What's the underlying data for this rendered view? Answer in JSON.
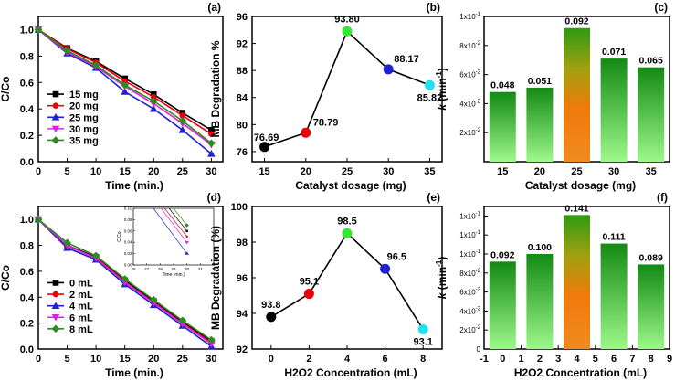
{
  "chart_data": [
    {
      "id": "a",
      "panel_label": "(a)",
      "type": "line",
      "xlabel": "Time (min.)",
      "ylabel": "C/Co",
      "xlim": [
        0,
        32
      ],
      "ylim": [
        0,
        1.1
      ],
      "x_ticks": [
        0,
        5,
        10,
        15,
        20,
        25,
        30
      ],
      "y_ticks": [
        "0.0",
        "0.2",
        "0.4",
        "0.6",
        "0.8",
        "1.0"
      ],
      "x": [
        0,
        5,
        10,
        15,
        20,
        25,
        30
      ],
      "legend_position": "bottom-left",
      "series": [
        {
          "name": "15 mg",
          "color": "#000000",
          "marker": "square",
          "values": [
            1.0,
            0.86,
            0.76,
            0.63,
            0.51,
            0.37,
            0.24
          ]
        },
        {
          "name": "20 mg",
          "color": "#e8000b",
          "marker": "circle",
          "values": [
            1.0,
            0.855,
            0.75,
            0.61,
            0.49,
            0.35,
            0.21
          ]
        },
        {
          "name": "25 mg",
          "color": "#1f1fd4",
          "marker": "triangle",
          "values": [
            1.0,
            0.82,
            0.71,
            0.53,
            0.4,
            0.24,
            0.06
          ]
        },
        {
          "name": "30 mg",
          "color": "#e020e0",
          "marker": "tri-down",
          "values": [
            1.0,
            0.83,
            0.72,
            0.57,
            0.44,
            0.29,
            0.13
          ]
        },
        {
          "name": "35 mg",
          "color": "#2e8b1f",
          "marker": "diamond",
          "values": [
            1.0,
            0.84,
            0.73,
            0.58,
            0.46,
            0.31,
            0.14
          ]
        }
      ]
    },
    {
      "id": "b",
      "panel_label": "(b)",
      "type": "line",
      "xlabel": "Catalyst dosage (mg)",
      "ylabel": "MB Degradation %",
      "xlim": [
        13.5,
        36.5
      ],
      "ylim": [
        74.5,
        96
      ],
      "x_ticks": [
        15,
        20,
        25,
        30,
        35
      ],
      "y_ticks": [
        76,
        80,
        84,
        88,
        92,
        96
      ],
      "x": [
        15,
        20,
        25,
        30,
        35
      ],
      "values": [
        76.69,
        78.79,
        93.8,
        88.17,
        85.82
      ],
      "labels": [
        "76.69",
        "78.79",
        "93.80",
        "88.17",
        "85.82"
      ],
      "point_colors": [
        "#000000",
        "#e8000b",
        "#33e833",
        "#1f1fd4",
        "#22e0ee"
      ]
    },
    {
      "id": "c",
      "panel_label": "(c)",
      "type": "bar",
      "xlabel": "Catalyst dosage (mg)",
      "ylabel_k": "k",
      "ylabel_rest": " (min",
      "ylabel_sup": "-1",
      "ylabel_end": ")",
      "categories": [
        "15",
        "20",
        "25",
        "30",
        "35"
      ],
      "values": [
        0.048,
        0.051,
        0.092,
        0.071,
        0.065
      ],
      "labels": [
        "0.048",
        "0.051",
        "0.092",
        "0.071",
        "0.065"
      ],
      "highlight_index": 2,
      "ylim": [
        0,
        0.1
      ],
      "y_ticks": [
        {
          "v": 0.02,
          "base": "2x10",
          "exp": "-2"
        },
        {
          "v": 0.04,
          "base": "4x10",
          "exp": "-2"
        },
        {
          "v": 0.06,
          "base": "6x10",
          "exp": "-2"
        },
        {
          "v": 0.08,
          "base": "8x10",
          "exp": "-2"
        },
        {
          "v": 0.1,
          "base": "1x10",
          "exp": "-1"
        }
      ]
    },
    {
      "id": "d",
      "panel_label": "(d)",
      "type": "line",
      "xlabel": "Time (min.)",
      "ylabel": "C/Co",
      "xlim": [
        0,
        32
      ],
      "ylim": [
        0,
        1.1
      ],
      "x_ticks": [
        0,
        5,
        10,
        15,
        20,
        25,
        30
      ],
      "y_ticks": [
        "0.0",
        "0.2",
        "0.4",
        "0.6",
        "0.8",
        "1.0"
      ],
      "x": [
        0,
        5,
        10,
        15,
        20,
        25,
        30
      ],
      "legend_position": "bottom-left",
      "series": [
        {
          "name": "0 mL",
          "color": "#000000",
          "marker": "square",
          "values": [
            1.0,
            0.8,
            0.71,
            0.53,
            0.37,
            0.21,
            0.06
          ]
        },
        {
          "name": "2 mL",
          "color": "#e8000b",
          "marker": "circle",
          "values": [
            1.0,
            0.795,
            0.705,
            0.52,
            0.36,
            0.2,
            0.05
          ]
        },
        {
          "name": "4 mL",
          "color": "#1f1fd4",
          "marker": "triangle",
          "values": [
            1.0,
            0.78,
            0.69,
            0.5,
            0.34,
            0.18,
            0.02
          ]
        },
        {
          "name": "6 mL",
          "color": "#e020e0",
          "marker": "tri-down",
          "values": [
            1.0,
            0.8,
            0.7,
            0.515,
            0.355,
            0.195,
            0.04
          ]
        },
        {
          "name": "8 mL",
          "color": "#2e8b1f",
          "marker": "diamond",
          "values": [
            1.0,
            0.82,
            0.72,
            0.54,
            0.38,
            0.22,
            0.07
          ]
        }
      ],
      "inset": {
        "xlabel": "Time (min.)",
        "ylabel": "C/Co",
        "xlim": [
          26,
          32
        ],
        "ylim": [
          0,
          0.1
        ],
        "x_ticks": [
          "26",
          "27",
          "28",
          "29",
          "30",
          "31",
          "32"
        ],
        "y_ticks": [
          "0.00",
          "0.02",
          "0.04",
          "0.06",
          "0.08",
          "0.10"
        ]
      }
    },
    {
      "id": "e",
      "panel_label": "(e)",
      "type": "line",
      "xlabel": "H2O2 Concentration (mL)",
      "ylabel": "MB Degradation (%)",
      "xlim": [
        -1,
        9
      ],
      "ylim": [
        92,
        100
      ],
      "x_ticks": [
        0,
        2,
        4,
        6,
        8
      ],
      "y_ticks": [
        92,
        94,
        96,
        98,
        100
      ],
      "x": [
        0,
        2,
        4,
        6,
        8
      ],
      "values": [
        93.8,
        95.1,
        98.5,
        96.5,
        93.1
      ],
      "labels": [
        "93.8",
        "95.1",
        "98.5",
        "96.5",
        "93.1"
      ],
      "point_colors": [
        "#000000",
        "#e8000b",
        "#33e833",
        "#1f1fd4",
        "#22e0ee"
      ]
    },
    {
      "id": "f",
      "panel_label": "(f)",
      "type": "bar",
      "xlabel": "H2O2 Concentration (mL)",
      "ylabel_k": "k",
      "ylabel_rest": " (min",
      "ylabel_sup": "-1",
      "ylabel_end": ")",
      "x_ticks": [
        -1,
        0,
        1,
        2,
        3,
        4,
        5,
        6,
        7,
        8,
        9
      ],
      "xlim": [
        -1,
        9
      ],
      "x": [
        0,
        2,
        4,
        6,
        8
      ],
      "values": [
        0.092,
        0.1,
        0.141,
        0.111,
        0.089
      ],
      "labels": [
        "0.092",
        "0.100",
        "0.141",
        "0.111",
        "0.089"
      ],
      "highlight_index": 2,
      "ylim": [
        0,
        0.15
      ],
      "y_ticks": [
        {
          "v": 0.0,
          "base": "0",
          "exp": ""
        },
        {
          "v": 0.02,
          "base": "2x10",
          "exp": "-2"
        },
        {
          "v": 0.04,
          "base": "4x10",
          "exp": "-2"
        },
        {
          "v": 0.06,
          "base": "6x10",
          "exp": "-2"
        },
        {
          "v": 0.08,
          "base": "8x10",
          "exp": "-2"
        },
        {
          "v": 0.1,
          "base": "1x10",
          "exp": "-1"
        },
        {
          "v": 0.12,
          "base": "1x10",
          "exp": "-1"
        },
        {
          "v": 0.14,
          "base": "1x10",
          "exp": "-1"
        }
      ]
    }
  ],
  "colors": {
    "bar_green_top": "#138a13",
    "bar_green_bottom": "#8af07a",
    "bar_orange_top": "#e06a0a",
    "bar_orange_bottom": "#4aa00a"
  }
}
